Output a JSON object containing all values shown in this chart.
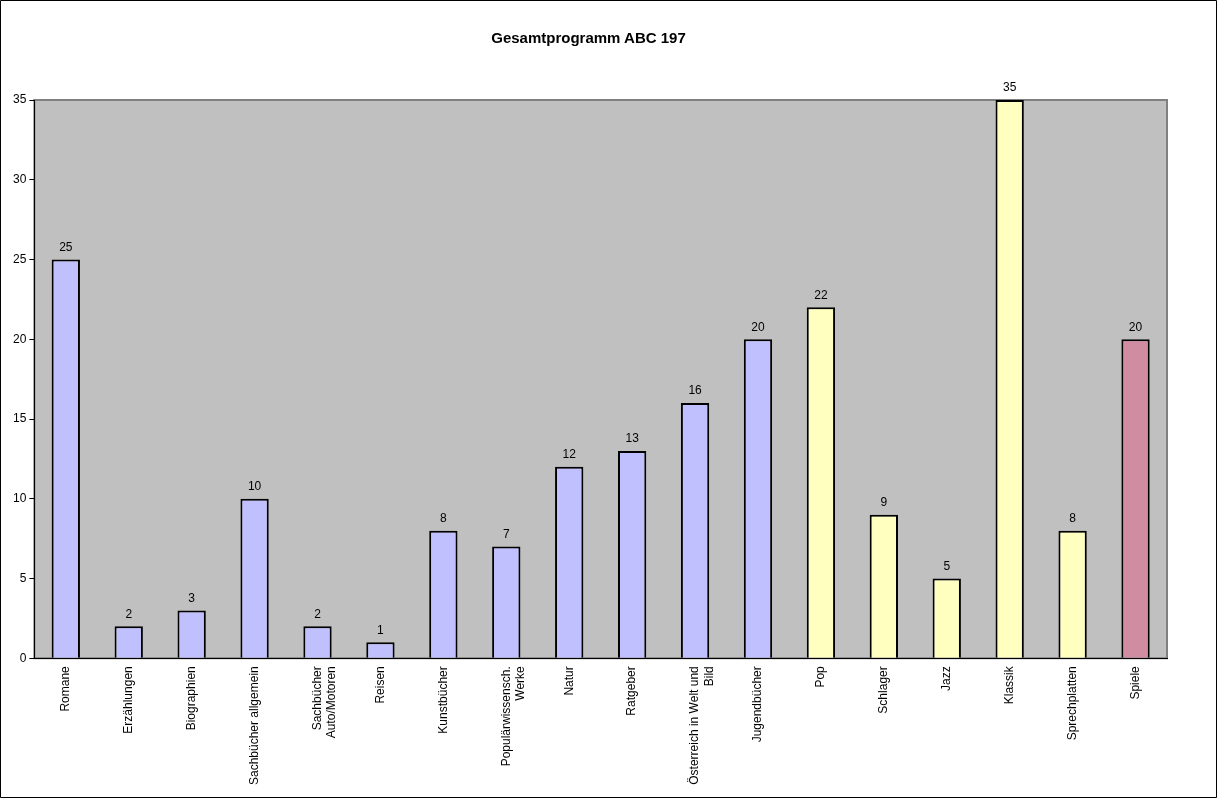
{
  "chart_data": {
    "type": "bar",
    "title": "Gesamtprogramm ABC 197",
    "categories": [
      "Romane",
      "Erzählungen",
      "Biographien",
      "Sachbücher allgemein",
      "Sachbücher Auto/Motoren",
      "Reisen",
      "Kunstbücher",
      "Populärwissensch. Werke",
      "Natur",
      "Ratgeber",
      "Österreich in Welt und Bild",
      "Jugendbücher",
      "Pop",
      "Schlager",
      "Jazz",
      "Klassik",
      "Sprechplatten",
      "Spiele"
    ],
    "values": [
      25,
      2,
      3,
      10,
      2,
      1,
      8,
      7,
      12,
      13,
      16,
      20,
      22,
      9,
      5,
      35,
      8,
      20
    ],
    "colors": [
      "#c0c0ff",
      "#c0c0ff",
      "#c0c0ff",
      "#c0c0ff",
      "#c0c0ff",
      "#c0c0ff",
      "#c0c0ff",
      "#c0c0ff",
      "#c0c0ff",
      "#c0c0ff",
      "#c0c0ff",
      "#c0c0ff",
      "#ffffc0",
      "#ffffc0",
      "#ffffc0",
      "#ffffc0",
      "#ffffc0",
      "#d08ca0"
    ],
    "ylim": [
      0,
      35
    ],
    "yticks": [
      0,
      5,
      10,
      15,
      20,
      25,
      30,
      35
    ],
    "grid": false,
    "legend": false,
    "data_labels": true
  }
}
